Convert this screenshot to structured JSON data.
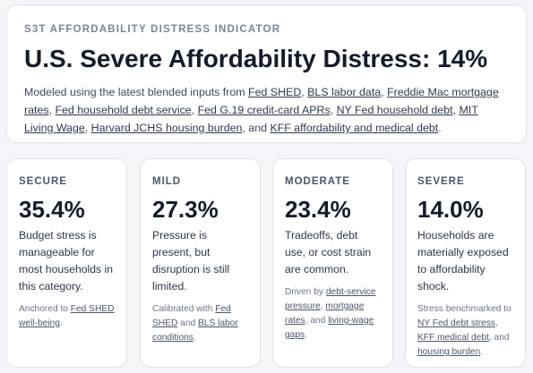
{
  "header": {
    "eyebrow": "S3T AFFORDABILITY DISTRESS INDICATOR",
    "headline": "U.S. Severe Affordability Distress: 14%",
    "desc_prefix": "Modeled using the latest blended inputs from",
    "sources": [
      "Fed SHED",
      "BLS labor data",
      "Freddie Mac mortgage rates",
      "Fed household debt service",
      "Fed G.19 credit-card APRs",
      "NY Fed household debt",
      "MIT Living Wage",
      "Harvard JCHS housing burden",
      "KFF affordability and medical debt"
    ],
    "sep": ",",
    "and": "and",
    "period": "."
  },
  "cards": [
    {
      "label": "SECURE",
      "value": "35.4%",
      "body": "Budget stress is manageable for most households in this category.",
      "foot_prefix": "Anchored to",
      "foot_links": [
        "Fed SHED well-being"
      ],
      "foot_suffix": "."
    },
    {
      "label": "MILD",
      "value": "27.3%",
      "body": "Pressure is present, but disruption is still limited.",
      "foot_prefix": "Calibrated with",
      "foot_links": [
        "Fed SHED",
        "BLS labor conditions"
      ],
      "foot_join": "and",
      "foot_suffix": "."
    },
    {
      "label": "MODERATE",
      "value": "23.4%",
      "body": "Tradeoffs, debt use, or cost strain are common.",
      "foot_prefix": "Driven by",
      "foot_links": [
        "debt-service pressure",
        "mortgage rates",
        "living-wage gaps"
      ],
      "foot_join": "and",
      "foot_suffix": "."
    },
    {
      "label": "SEVERE",
      "value": "14.0%",
      "body": "Households are materially exposed to affordability shock.",
      "foot_prefix": "Stress benchmarked to",
      "foot_links": [
        "NY Fed debt stress",
        "KFF medical debt",
        "housing burden"
      ],
      "foot_join": "and",
      "foot_suffix": "."
    }
  ]
}
